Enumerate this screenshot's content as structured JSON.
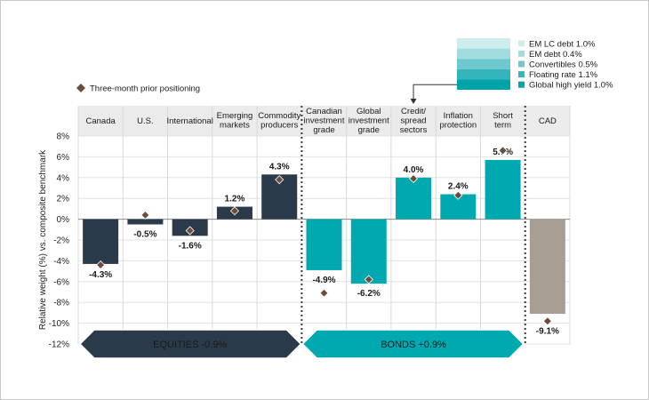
{
  "chart_data": {
    "type": "bar",
    "ylabel": "Relative weight (%) vs. composite benchmark",
    "ylim": [
      -12,
      8
    ],
    "yticks": [
      8,
      6,
      4,
      2,
      0,
      -2,
      -4,
      -6,
      -8,
      -10,
      -12
    ],
    "ytick_labels": [
      "8%",
      "6%",
      "4%",
      "2%",
      "0%",
      "-2%",
      "-4%",
      "-6%",
      "-8%",
      "-10%",
      "-12%"
    ],
    "grid": true,
    "categories": [
      {
        "name": "Canada",
        "lines": [
          "Canada"
        ],
        "value": -4.3,
        "label": "-4.3%",
        "prior": -4.4,
        "group": "equities"
      },
      {
        "name": "U.S.",
        "lines": [
          "U.S."
        ],
        "value": -0.5,
        "label": "-0.5%",
        "prior": 0.4,
        "group": "equities"
      },
      {
        "name": "International",
        "lines": [
          "International"
        ],
        "value": -1.6,
        "label": "-1.6%",
        "prior": -1.1,
        "group": "equities"
      },
      {
        "name": "Emerging markets",
        "lines": [
          "Emerging",
          "markets"
        ],
        "value": 1.2,
        "label": "1.2%",
        "prior": 0.8,
        "group": "equities"
      },
      {
        "name": "Commodity producers",
        "lines": [
          "Commodity",
          "producers"
        ],
        "value": 4.3,
        "label": "4.3%",
        "prior": 3.8,
        "group": "equities"
      },
      {
        "name": "Canadian investment grade",
        "lines": [
          "Canadian",
          "investment",
          "grade"
        ],
        "value": -4.9,
        "label": "-4.9%",
        "prior": -7.1,
        "group": "bonds"
      },
      {
        "name": "Global investment grade",
        "lines": [
          "Global",
          "investment",
          "grade"
        ],
        "value": -6.2,
        "label": "-6.2%",
        "prior": -5.8,
        "group": "bonds"
      },
      {
        "name": "Credit/ spread sectors",
        "lines": [
          "Credit/",
          "spread",
          "sectors"
        ],
        "value": 4.0,
        "label": "4.0%",
        "prior": 3.9,
        "group": "bonds"
      },
      {
        "name": "Inflation protection",
        "lines": [
          "Inflation",
          "protection"
        ],
        "value": 2.4,
        "label": "2.4%",
        "prior": 2.3,
        "group": "bonds"
      },
      {
        "name": "Short term",
        "lines": [
          "Short",
          "term"
        ],
        "value": 5.7,
        "label": "5.7%",
        "prior": 6.6,
        "group": "bonds"
      },
      {
        "name": "CAD",
        "lines": [
          "CAD"
        ],
        "value": -9.1,
        "label": "-9.1%",
        "prior": -9.8,
        "group": "cad"
      }
    ],
    "legend": {
      "prior_label": "Three-month prior positioning",
      "credit_breakdown": [
        {
          "label": "EM LC debt 1.0%",
          "value": 1.0,
          "color": "#cdecee"
        },
        {
          "label": "EM debt 0.4%",
          "value": 0.4,
          "color": "#a3dcdf"
        },
        {
          "label": "Convertibles 0.5%",
          "value": 0.5,
          "color": "#6dc9cd"
        },
        {
          "label": "Floating rate 1.1%",
          "value": 1.1,
          "color": "#34b5bb"
        },
        {
          "label": "Global high yield 1.0%",
          "value": 1.0,
          "color": "#00a3aa"
        }
      ]
    },
    "bands": {
      "equities": "EQUITIES -0.9%",
      "bonds": "BONDS +0.9%"
    },
    "colors": {
      "equities": "#2a3a4a",
      "bonds": "#00a9b0",
      "cad": "#a99e93",
      "diamond": "#6b4d3a",
      "equities_band": "#2a3a4a",
      "bonds_band": "#00a9b0"
    }
  }
}
